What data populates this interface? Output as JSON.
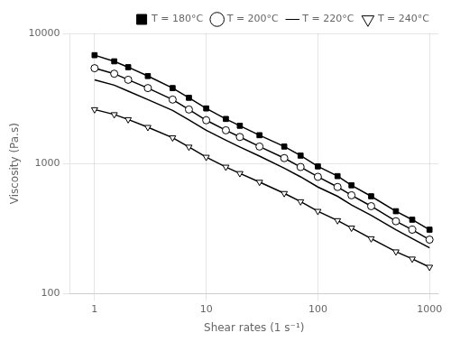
{
  "chart_data": {
    "type": "line",
    "xlabel": "Shear rates (1 s⁻¹)",
    "ylabel": "Viscosity (Pa.s)",
    "log": true,
    "grid": true,
    "legend": "upper right",
    "xlim": [
      0.6,
      1200
    ],
    "ylim": [
      100,
      10000
    ],
    "xticks": [
      1,
      10,
      100,
      1000
    ],
    "yticks": [
      100,
      1000,
      10000
    ],
    "x": [
      1.0,
      1.5,
      2.0,
      3.0,
      5.0,
      7.0,
      10.0,
      15.0,
      20.0,
      30.0,
      50.0,
      70.0,
      100.0,
      150.0,
      200.0,
      300.0,
      500.0,
      700.0,
      1000.0
    ],
    "series": [
      {
        "name": "T = 180°C",
        "color": "black",
        "marker": "square",
        "values": [
          6800,
          6100,
          5500,
          4700,
          3800,
          3200,
          2650,
          2200,
          1950,
          1650,
          1350,
          1150,
          950,
          800,
          680,
          560,
          430,
          370,
          310
        ]
      },
      {
        "name": "T = 200°C",
        "color": "black",
        "marker": "open_circle",
        "values": [
          5400,
          4900,
          4400,
          3800,
          3100,
          2600,
          2150,
          1800,
          1600,
          1350,
          1100,
          940,
          790,
          660,
          570,
          470,
          360,
          310,
          260
        ]
      },
      {
        "name": "T = 220°C",
        "color": "black",
        "marker": "none",
        "values": [
          4400,
          4000,
          3600,
          3100,
          2560,
          2160,
          1800,
          1510,
          1340,
          1140,
          920,
          790,
          660,
          560,
          480,
          400,
          310,
          265,
          225
        ]
      },
      {
        "name": "T = 240°C",
        "color": "black",
        "marker": "open_triangle_down",
        "values": [
          2600,
          2380,
          2180,
          1900,
          1580,
          1340,
          1120,
          940,
          840,
          720,
          590,
          510,
          430,
          365,
          320,
          265,
          210,
          185,
          160
        ]
      }
    ]
  }
}
